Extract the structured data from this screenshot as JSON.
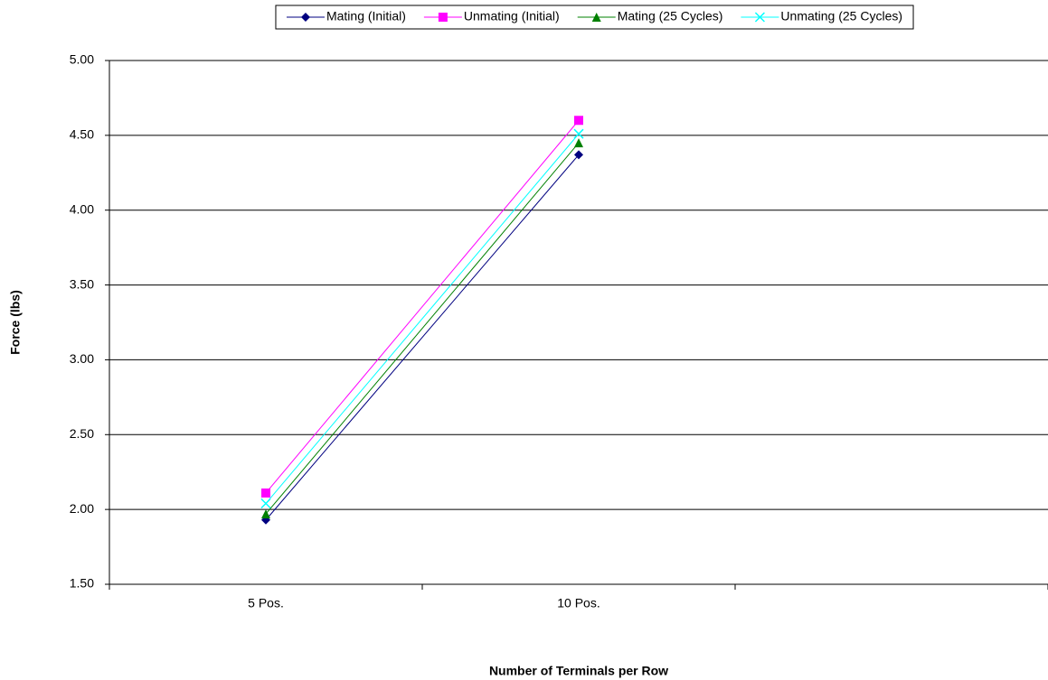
{
  "chart_data": {
    "type": "line",
    "categories": [
      "5 Pos.",
      "10 Pos.",
      null
    ],
    "series": [
      {
        "name": "Mating (Initial)",
        "color": "#000080",
        "marker": "diamond",
        "values": [
          1.93,
          4.37,
          null
        ]
      },
      {
        "name": "Unmating (Initial)",
        "color": "#ff00ff",
        "marker": "square",
        "values": [
          2.11,
          4.6,
          null
        ]
      },
      {
        "name": "Mating (25 Cycles)",
        "color": "#008000",
        "marker": "triangle",
        "values": [
          1.97,
          4.45,
          null
        ]
      },
      {
        "name": "Unmating (25 Cycles)",
        "color": "#00ffff",
        "marker": "x",
        "values": [
          2.04,
          4.51,
          null
        ]
      }
    ],
    "ylabel": "Force (lbs)",
    "xlabel": "Number of Terminals per Row",
    "ylim": [
      1.5,
      5.0
    ],
    "yticks": [
      {
        "value": 1.5,
        "label": "1.50"
      },
      {
        "value": 2.0,
        "label": "2.00"
      },
      {
        "value": 2.5,
        "label": "2.50"
      },
      {
        "value": 3.0,
        "label": "3.00"
      },
      {
        "value": 3.5,
        "label": "3.50"
      },
      {
        "value": 4.0,
        "label": "4.00"
      },
      {
        "value": 4.5,
        "label": "4.50"
      },
      {
        "value": 5.0,
        "label": "5.00"
      }
    ],
    "grid": true,
    "legend": "top"
  }
}
